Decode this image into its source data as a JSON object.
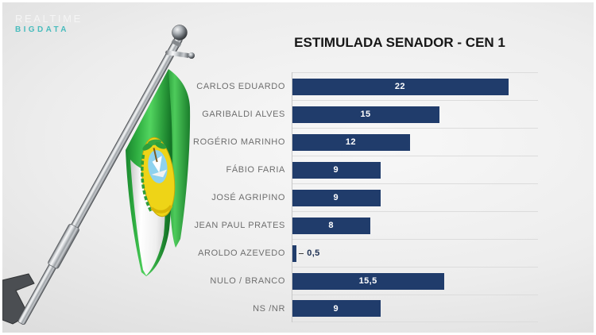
{
  "logo": {
    "line1": "REALTIME",
    "line2": "BIGDATA"
  },
  "flag": {
    "name": "rio-grande-do-norte-flag-on-chrome-pole"
  },
  "colors": {
    "bar": "#203c6b",
    "logo_teal": "#49bcbd",
    "label_gray": "#6e6e6e",
    "outside_value": "#1c2f52",
    "background": "#ededed"
  },
  "chart_data": {
    "type": "bar",
    "orientation": "horizontal",
    "title": "ESTIMULADA SENADOR - CEN 1",
    "categories": [
      "CARLOS EDUARDO",
      "GARIBALDI ALVES",
      "ROGÉRIO MARINHO",
      "FÁBIO FARIA",
      "JOSÉ AGRIPINO",
      "JEAN PAUL PRATES",
      "AROLDO AZEVEDO",
      "NULO / BRANCO",
      "NS /NR"
    ],
    "values": [
      22,
      15,
      12,
      9,
      9,
      8,
      0.5,
      15.5,
      9
    ],
    "value_labels": [
      "22",
      "15",
      "12",
      "9",
      "9",
      "8",
      "0,5",
      "15,5",
      "9"
    ],
    "xlim": [
      0,
      25
    ],
    "bar_color": "#203c6b",
    "grid": "horizontal row separator lines, light gray",
    "legend": "none",
    "value_label_position": "inside-center; outside with leader dash for very small bars"
  }
}
